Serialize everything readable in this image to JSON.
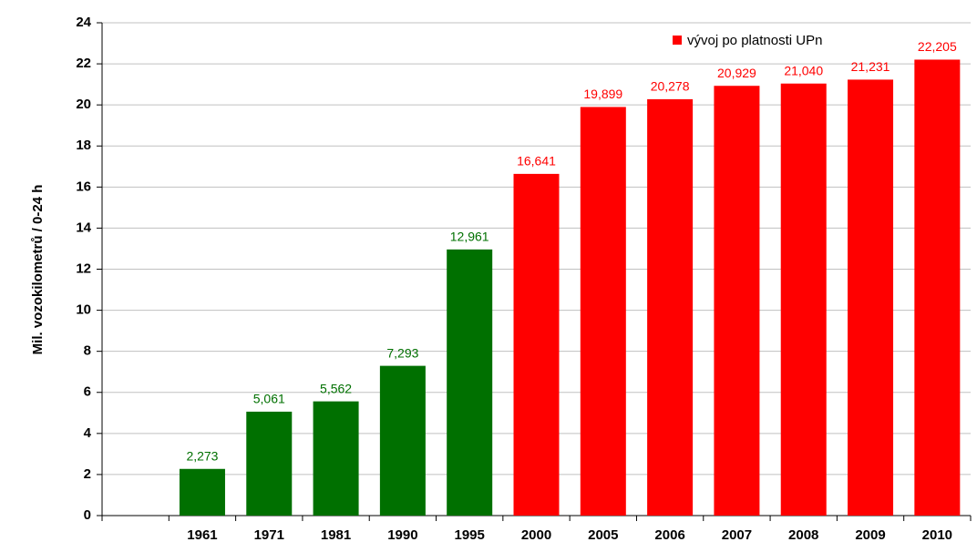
{
  "chart_data": {
    "type": "bar",
    "y_axis_label": "Mil. vozokilometrů / 0-24 h",
    "categories": [
      null,
      "1961",
      "1971",
      "1981",
      "1990",
      "1995",
      "2000",
      "2005",
      "2006",
      "2007",
      "2008",
      "2009",
      "2010"
    ],
    "values": [
      null,
      2.273,
      5.061,
      5.562,
      7.293,
      12.961,
      16.641,
      19.899,
      20.278,
      20.929,
      21.04,
      21.231,
      22.205
    ],
    "value_labels": [
      null,
      "2,273",
      "5,061",
      "5,562",
      "7,293",
      "12,961",
      "16,641",
      "19,899",
      "20,278",
      "20,929",
      "21,040",
      "21,231",
      "22,205"
    ],
    "colors": [
      null,
      "#007000",
      "#007000",
      "#007000",
      "#007000",
      "#007000",
      "#ff0000",
      "#ff0000",
      "#ff0000",
      "#ff0000",
      "#ff0000",
      "#ff0000",
      "#ff0000"
    ],
    "legend": {
      "label": "vývoj po platnosti UPn",
      "color": "#ff0000"
    },
    "ylim": [
      0,
      24
    ],
    "yticks": [
      0,
      2,
      4,
      6,
      8,
      10,
      12,
      14,
      16,
      18,
      20,
      22,
      24
    ],
    "grid": true
  }
}
